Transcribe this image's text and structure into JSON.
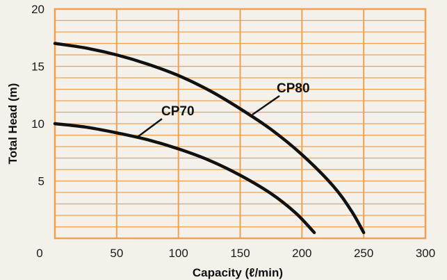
{
  "chart_data": {
    "type": "line",
    "title": "",
    "xlabel": "Capacity (ℓ/min)",
    "ylabel": "Total Head (m)",
    "xlim": [
      0,
      300
    ],
    "ylim": [
      0,
      20
    ],
    "x_ticks": [
      "0",
      "50",
      "100",
      "150",
      "200",
      "250",
      "300"
    ],
    "y_ticks": [
      "5",
      "10",
      "15",
      "20"
    ],
    "grid": true,
    "colors": {
      "grid": "#f0a050",
      "frame": "#f0a050",
      "curve": "#111111",
      "background": "#f4f1ea"
    },
    "series": [
      {
        "name": "CP80",
        "x": [
          0,
          25,
          50,
          75,
          100,
          125,
          150,
          175,
          200,
          225,
          240,
          250
        ],
        "y": [
          17.0,
          16.6,
          16.0,
          15.2,
          14.2,
          12.9,
          11.3,
          9.5,
          7.3,
          4.6,
          2.4,
          0.5
        ]
      },
      {
        "name": "CP70",
        "x": [
          0,
          25,
          50,
          75,
          100,
          125,
          150,
          175,
          195,
          210
        ],
        "y": [
          10.0,
          9.7,
          9.2,
          8.6,
          7.8,
          6.8,
          5.5,
          3.9,
          2.2,
          0.5
        ]
      }
    ]
  }
}
